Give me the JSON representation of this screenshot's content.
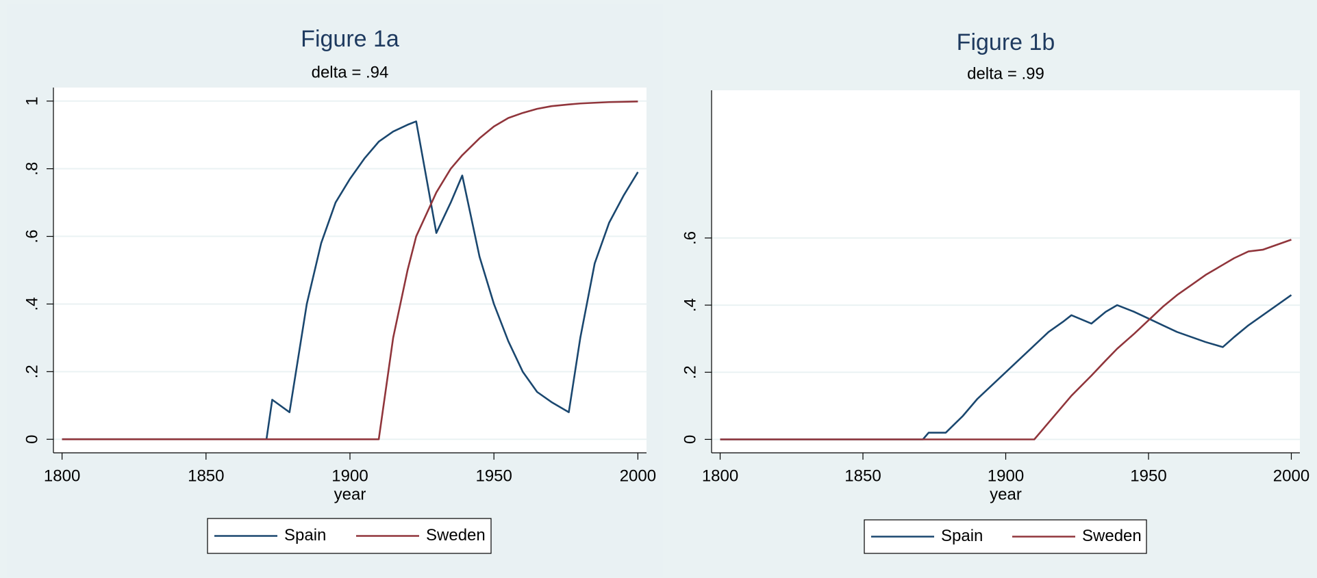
{
  "chart_data": [
    {
      "type": "line",
      "title": "Figure 1a",
      "subtitle": "delta = .94",
      "x_label": "year",
      "x": [
        1800,
        1871,
        1873,
        1879,
        1885,
        1890,
        1895,
        1900,
        1905,
        1910,
        1915,
        1920,
        1923,
        1930,
        1935,
        1939,
        1945,
        1950,
        1955,
        1960,
        1965,
        1970,
        1976,
        1980,
        1985,
        1990,
        1995,
        2000
      ],
      "series": [
        {
          "name": "Spain",
          "color": "#1a476f",
          "values": [
            0,
            0,
            0.117,
            0.08,
            0.4,
            0.58,
            0.7,
            0.77,
            0.83,
            0.88,
            0.91,
            0.93,
            0.94,
            0.61,
            0.7,
            0.78,
            0.54,
            0.4,
            0.29,
            0.2,
            0.14,
            0.11,
            0.08,
            0.3,
            0.52,
            0.64,
            0.72,
            0.79
          ]
        },
        {
          "name": "Sweden",
          "color": "#90353b",
          "values": [
            0,
            0,
            0,
            0,
            0,
            0,
            0,
            0,
            0,
            0,
            0.3,
            0.5,
            0.6,
            0.73,
            0.8,
            0.84,
            0.89,
            0.925,
            0.95,
            0.965,
            0.977,
            0.985,
            0.99,
            0.993,
            0.995,
            0.997,
            0.998,
            0.999
          ]
        }
      ],
      "xlim": [
        1797,
        2003
      ],
      "ylim": [
        -0.04,
        1.04
      ],
      "xticks": [
        1800,
        1850,
        1900,
        1950,
        2000
      ],
      "yticks": [
        0,
        {
          "value": 0.2,
          "label": ".2"
        },
        {
          "value": 0.4,
          "label": ".4"
        },
        {
          "value": 0.6,
          "label": ".6"
        },
        {
          "value": 0.8,
          "label": ".8"
        },
        1
      ],
      "grid": true,
      "legend": "bottom"
    },
    {
      "type": "line",
      "title": "Figure 1b",
      "subtitle": "delta = .99",
      "x_label": "year",
      "x": [
        1800,
        1871,
        1873,
        1879,
        1885,
        1890,
        1895,
        1900,
        1905,
        1910,
        1915,
        1920,
        1923,
        1930,
        1935,
        1939,
        1945,
        1950,
        1955,
        1960,
        1965,
        1970,
        1976,
        1980,
        1985,
        1990,
        1995,
        2000
      ],
      "series": [
        {
          "name": "Spain",
          "color": "#1a476f",
          "values": [
            0,
            0,
            0.02,
            0.02,
            0.07,
            0.12,
            0.16,
            0.2,
            0.24,
            0.28,
            0.32,
            0.35,
            0.37,
            0.345,
            0.38,
            0.4,
            0.38,
            0.36,
            0.34,
            0.32,
            0.305,
            0.29,
            0.275,
            0.305,
            0.34,
            0.37,
            0.4,
            0.43
          ]
        },
        {
          "name": "Sweden",
          "color": "#90353b",
          "values": [
            0,
            0,
            0,
            0,
            0,
            0,
            0,
            0,
            0,
            0,
            0.05,
            0.1,
            0.13,
            0.19,
            0.235,
            0.27,
            0.315,
            0.355,
            0.395,
            0.43,
            0.46,
            0.49,
            0.52,
            0.54,
            0.56,
            0.565,
            0.58,
            0.595
          ]
        }
      ],
      "xlim": [
        1797,
        2003
      ],
      "ylim": [
        -0.04,
        1.04
      ],
      "xticks": [
        1800,
        1850,
        1900,
        1950,
        2000
      ],
      "yticks": [
        0,
        {
          "value": 0.2,
          "label": ".2"
        },
        {
          "value": 0.4,
          "label": ".4"
        },
        {
          "value": 0.6,
          "label": ".6"
        }
      ],
      "grid": true,
      "legend": "bottom"
    }
  ]
}
